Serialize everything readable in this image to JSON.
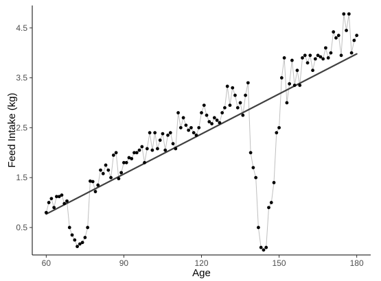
{
  "chart_data": {
    "type": "scatter",
    "title": "",
    "xlabel": "Age",
    "ylabel": "Feed Intake (kg)",
    "xlim": [
      54.6,
      185.4
    ],
    "ylim": [
      -0.05,
      4.95
    ],
    "x_ticks": [
      60,
      90,
      120,
      150,
      180
    ],
    "x_tick_labels": [
      "60",
      "90",
      "120",
      "150",
      "180"
    ],
    "y_ticks": [
      0.5,
      1.5,
      2.5,
      3.5,
      4.5
    ],
    "y_tick_labels": [
      "0.5",
      "1.5",
      "2.5",
      "3.5",
      "4.5"
    ],
    "grid": false,
    "colors": {
      "points": "#000000",
      "connector": "#bfbfbf",
      "trend": "#404040",
      "axis": "#000000"
    },
    "series": [
      {
        "kind": "connected-points",
        "x": [
          60,
          61,
          62,
          63,
          64,
          65,
          66,
          67,
          68,
          69,
          70,
          71,
          72,
          73,
          74,
          75,
          76,
          77,
          78,
          79,
          80,
          81,
          82,
          83,
          84,
          85,
          86,
          87,
          88,
          89,
          90,
          91,
          92,
          93,
          94,
          95,
          96,
          97,
          98,
          99,
          100,
          101,
          102,
          103,
          104,
          105,
          106,
          107,
          108,
          109,
          110,
          111,
          112,
          113,
          114,
          115,
          116,
          117,
          118,
          119,
          120,
          121,
          122,
          123,
          124,
          125,
          126,
          127,
          128,
          129,
          130,
          131,
          132,
          133,
          134,
          135,
          136,
          137,
          138,
          139,
          140,
          141,
          142,
          143,
          144,
          145,
          146,
          147,
          148,
          149,
          150,
          151,
          152,
          153,
          154,
          155,
          156,
          157,
          158,
          159,
          160,
          161,
          162,
          163,
          164,
          165,
          166,
          167,
          168,
          169,
          170,
          171,
          172,
          173,
          174,
          175,
          176,
          177,
          178,
          179,
          180
        ],
        "y": [
          0.8,
          1.0,
          1.08,
          0.9,
          1.12,
          1.12,
          1.15,
          0.98,
          1.03,
          0.5,
          0.35,
          0.25,
          0.12,
          0.17,
          0.2,
          0.3,
          0.5,
          1.43,
          1.42,
          1.22,
          1.35,
          1.65,
          1.58,
          1.75,
          1.65,
          1.5,
          1.95,
          2.0,
          1.48,
          1.6,
          1.8,
          1.8,
          1.9,
          1.88,
          2.0,
          2.0,
          2.05,
          2.12,
          1.8,
          2.08,
          2.4,
          2.05,
          2.4,
          2.08,
          2.25,
          2.38,
          2.05,
          2.35,
          2.4,
          2.18,
          2.08,
          2.8,
          2.5,
          2.7,
          2.55,
          2.45,
          2.5,
          2.4,
          2.35,
          2.5,
          2.8,
          2.95,
          2.75,
          2.62,
          2.58,
          2.7,
          2.65,
          2.6,
          2.8,
          2.9,
          3.33,
          2.95,
          3.3,
          3.15,
          2.9,
          3.0,
          2.75,
          3.15,
          3.4,
          2.0,
          1.7,
          1.5,
          0.5,
          0.1,
          0.05,
          0.1,
          0.9,
          1.0,
          1.4,
          2.4,
          2.5,
          3.5,
          3.9,
          3.0,
          3.38,
          3.85,
          3.35,
          3.65,
          3.35,
          3.9,
          3.95,
          3.8,
          3.95,
          3.65,
          3.88,
          3.95,
          3.92,
          3.88,
          4.1,
          3.9,
          4.0,
          4.42,
          4.3,
          4.35,
          3.95,
          4.78,
          4.45,
          4.78,
          4.0,
          4.25,
          4.35
        ]
      },
      {
        "kind": "trend-line",
        "x": [
          60,
          180
        ],
        "y": [
          0.77,
          3.98
        ]
      }
    ]
  }
}
